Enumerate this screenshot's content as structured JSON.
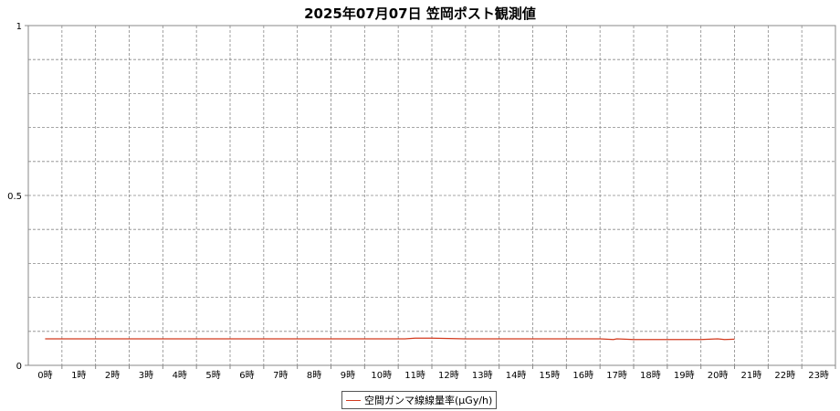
{
  "chart_data": {
    "type": "line",
    "title": "2025年07月07日 笠岡ポスト観測値",
    "categories": [
      "0時",
      "1時",
      "2時",
      "3時",
      "4時",
      "5時",
      "6時",
      "7時",
      "8時",
      "9時",
      "10時",
      "11時",
      "12時",
      "13時",
      "14時",
      "15時",
      "16時",
      "17時",
      "18時",
      "19時",
      "20時",
      "21時",
      "22時",
      "23時"
    ],
    "yticks": [
      "0",
      "0.5",
      "1"
    ],
    "ylim": [
      0,
      1
    ],
    "grid": true,
    "legend_position": "bottom",
    "series": [
      {
        "name": "空間ガンマ線線量率(μGy/h)",
        "color": "#d23a1e",
        "x": [
          0,
          1,
          2,
          3,
          4,
          5,
          6,
          7,
          8,
          9,
          10,
          10.7,
          11,
          11.5,
          12,
          12.5,
          13,
          14,
          15,
          16,
          16.5,
          16.9,
          17,
          17.5,
          18,
          19,
          19.5,
          20,
          20.2,
          20.5
        ],
        "y": [
          0.078,
          0.078,
          0.078,
          0.078,
          0.078,
          0.078,
          0.078,
          0.078,
          0.078,
          0.078,
          0.078,
          0.078,
          0.08,
          0.08,
          0.079,
          0.078,
          0.078,
          0.078,
          0.078,
          0.078,
          0.078,
          0.076,
          0.078,
          0.076,
          0.076,
          0.076,
          0.076,
          0.078,
          0.076,
          0.077
        ]
      }
    ]
  }
}
